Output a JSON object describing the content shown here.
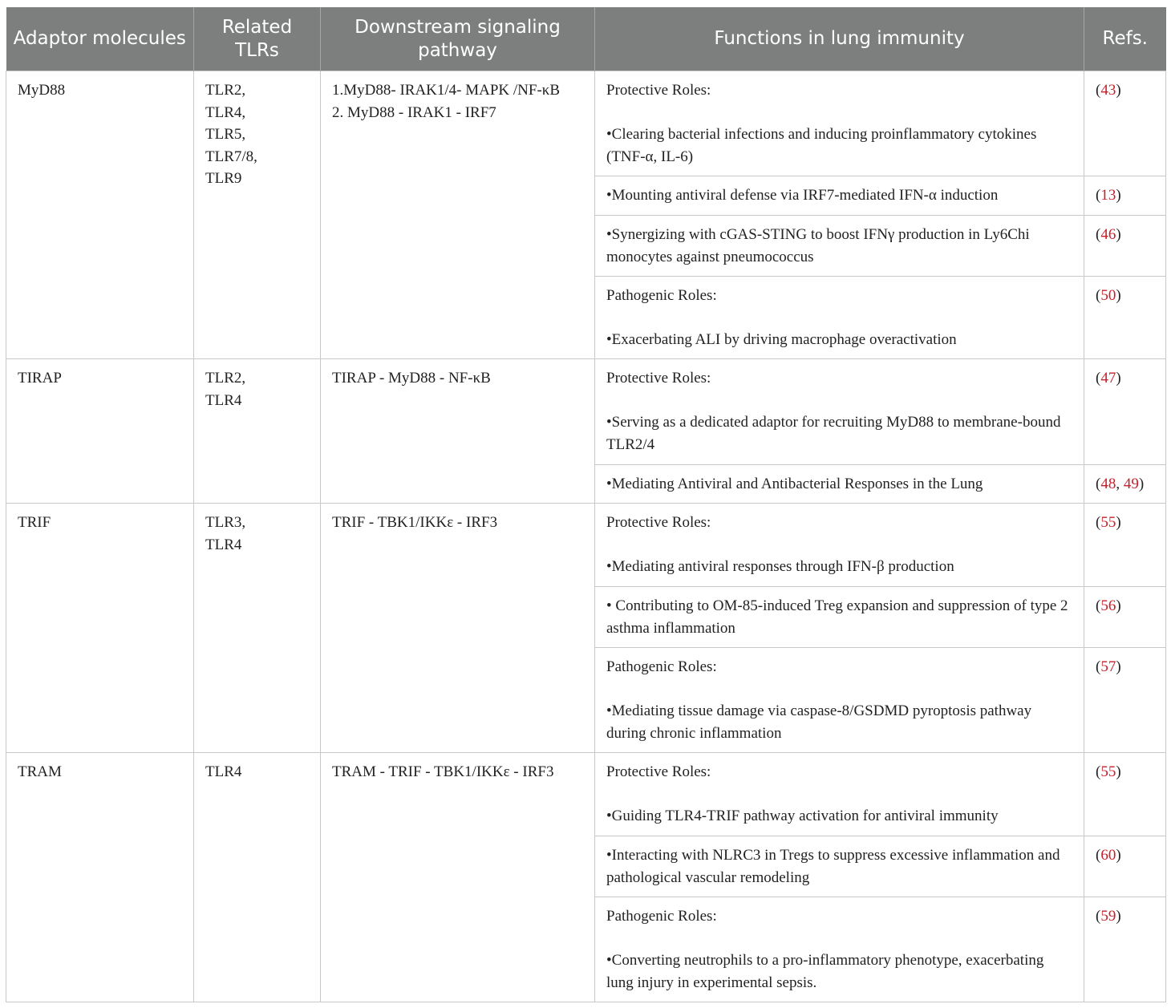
{
  "headers": [
    "Adaptor molecules",
    "Related TLRs",
    "Downstream signaling pathway",
    "Functions in lung immunity",
    "Refs."
  ],
  "accent_ref_color": "#c8202a",
  "rows": [
    {
      "adaptor": "MyD88",
      "tlrs": "TLR2,\nTLR4,\nTLR5,\nTLR7/8,\nTLR9",
      "pathway": "1.MyD88- IRAK1/4- MAPK /NF-κB\n2. MyD88 - IRAK1 - IRF7",
      "functions": [
        {
          "text": "Protective Roles:\n\n•Clearing bacterial infections and inducing proinflammatory cytokines (TNF-α, IL-6)",
          "refs": [
            "43"
          ]
        },
        {
          "text": "•Mounting antiviral defense via IRF7-mediated IFN-α induction",
          "refs": [
            "13"
          ]
        },
        {
          "text": "•Synergizing with cGAS-STING to boost IFNγ production in Ly6Chi monocytes against pneumococcus",
          "refs": [
            "46"
          ]
        },
        {
          "text": "Pathogenic Roles:\n\n•Exacerbating ALI by driving macrophage overactivation",
          "refs": [
            "50"
          ]
        }
      ]
    },
    {
      "adaptor": "TIRAP",
      "tlrs": "TLR2,\nTLR4",
      "pathway": "TIRAP - MyD88 - NF-κB",
      "functions": [
        {
          "text": "Protective Roles:\n\n•Serving as a dedicated adaptor for recruiting MyD88 to membrane-bound TLR2/4",
          "refs": [
            "47"
          ]
        },
        {
          "text": "•Mediating Antiviral and Antibacterial Responses in the Lung",
          "refs": [
            "48",
            "49"
          ]
        }
      ]
    },
    {
      "adaptor": "TRIF",
      "tlrs": "TLR3,\nTLR4",
      "pathway": "TRIF - TBK1/IKKε - IRF3",
      "functions": [
        {
          "text": "Protective Roles:\n\n•Mediating antiviral responses through IFN-β production",
          "refs": [
            "55"
          ]
        },
        {
          "text": "• Contributing to OM-85-induced Treg expansion and suppression of type 2 asthma inflammation",
          "refs": [
            "56"
          ]
        },
        {
          "text": "Pathogenic Roles:\n\n•Mediating tissue damage via caspase-8/GSDMD pyroptosis pathway during chronic inflammation",
          "refs": [
            "57"
          ]
        }
      ]
    },
    {
      "adaptor": "TRAM",
      "tlrs": "TLR4",
      "pathway": "TRAM - TRIF - TBK1/IKKε - IRF3",
      "functions": [
        {
          "text": "Protective Roles:\n\n•Guiding TLR4-TRIF pathway activation for antiviral immunity",
          "refs": [
            "55"
          ]
        },
        {
          "text": "•Interacting with NLRC3 in Tregs to suppress excessive inflammation and pathological vascular remodeling",
          "refs": [
            "60"
          ]
        },
        {
          "text": "Pathogenic Roles:\n\n•Converting neutrophils to a pro-inflammatory phenotype, exacerbating lung injury in experimental sepsis.",
          "refs": [
            "59"
          ]
        }
      ]
    }
  ]
}
